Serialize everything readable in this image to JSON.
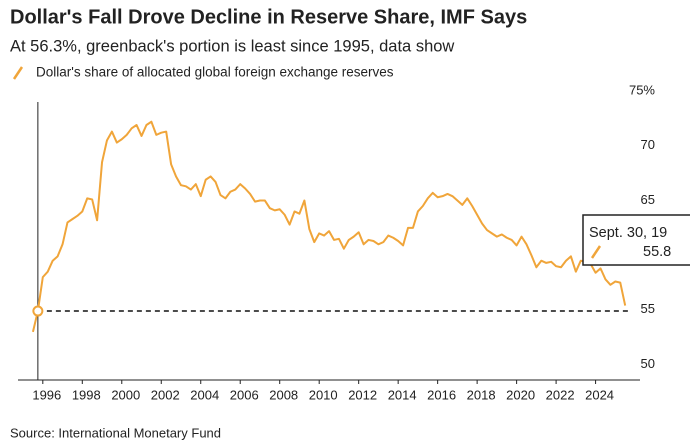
{
  "chart_data": {
    "type": "line",
    "title": "Dollar's Fall Drove Decline in Reserve Share, IMF Says",
    "subtitle": "At 56.3%, greenback's portion is least since 1995, data show",
    "source": "Source: International Monetary Fund",
    "x": [
      1995.5,
      1995.75,
      1996,
      1996.25,
      1996.5,
      1996.75,
      1997,
      1997.25,
      1997.5,
      1997.75,
      1998,
      1998.25,
      1998.5,
      1998.75,
      1999,
      1999.25,
      1999.5,
      1999.75,
      2000,
      2000.25,
      2000.5,
      2000.75,
      2001,
      2001.25,
      2001.5,
      2001.75,
      2002,
      2002.25,
      2002.5,
      2002.75,
      2003,
      2003.25,
      2003.5,
      2003.75,
      2004,
      2004.25,
      2004.5,
      2004.75,
      2005,
      2005.25,
      2005.5,
      2005.75,
      2006,
      2006.25,
      2006.5,
      2006.75,
      2007,
      2007.25,
      2007.5,
      2007.75,
      2008,
      2008.25,
      2008.5,
      2008.75,
      2009,
      2009.25,
      2009.5,
      2009.75,
      2010,
      2010.25,
      2010.5,
      2010.75,
      2011,
      2011.25,
      2011.5,
      2011.75,
      2012,
      2012.25,
      2012.5,
      2012.75,
      2013,
      2013.25,
      2013.5,
      2013.75,
      2014,
      2014.25,
      2014.5,
      2014.75,
      2015,
      2015.25,
      2015.5,
      2015.75,
      2016,
      2016.25,
      2016.5,
      2016.75,
      2017,
      2017.25,
      2017.5,
      2017.75,
      2018,
      2018.25,
      2018.5,
      2018.75,
      2019,
      2019.25,
      2019.5,
      2019.75,
      2020,
      2020.25,
      2020.5,
      2020.75,
      2021,
      2021.25,
      2021.5,
      2021.75,
      2022,
      2022.25,
      2022.5,
      2022.75,
      2023,
      2023.25,
      2023.5,
      2023.75,
      2024,
      2024.25,
      2024.5,
      2024.75,
      2025,
      2025.25,
      2025.5
    ],
    "series": [
      {
        "name": "Dollar's share of allocated global foreign exchange reserves",
        "color": "#f0a53a",
        "values": [
          53.9,
          55.8,
          58.9,
          59.4,
          60.4,
          60.8,
          61.9,
          63.9,
          64.2,
          64.5,
          64.9,
          66.1,
          66.0,
          64.1,
          69.4,
          71.4,
          72.2,
          71.2,
          71.5,
          71.9,
          72.5,
          72.8,
          71.8,
          72.8,
          73.1,
          71.9,
          72.1,
          72.2,
          69.2,
          68.1,
          67.3,
          67.2,
          66.9,
          67.4,
          66.3,
          67.8,
          68.1,
          67.6,
          66.4,
          66.1,
          66.7,
          66.9,
          67.4,
          67.0,
          66.5,
          65.8,
          65.9,
          65.9,
          65.2,
          65.0,
          65.1,
          64.6,
          63.7,
          64.9,
          64.7,
          65.9,
          63.3,
          62.1,
          62.9,
          62.7,
          63.1,
          62.3,
          62.4,
          61.5,
          62.3,
          62.6,
          63.0,
          61.9,
          62.3,
          62.2,
          61.9,
          62.1,
          62.7,
          62.5,
          62.2,
          61.8,
          63.4,
          63.4,
          64.9,
          65.4,
          66.1,
          66.6,
          66.2,
          66.3,
          66.5,
          66.3,
          65.9,
          65.5,
          66.1,
          65.4,
          64.6,
          63.8,
          63.2,
          62.9,
          62.6,
          62.8,
          62.5,
          62.3,
          61.8,
          62.6,
          61.9,
          60.9,
          59.8,
          60.4,
          60.2,
          60.3,
          59.9,
          59.8,
          60.4,
          60.8,
          59.4,
          60.4,
          60.3,
          60.1,
          59.3,
          59.7,
          58.7,
          58.2,
          58.5,
          58.4,
          56.3
        ]
      }
    ],
    "xlim": [
      1995.25,
      2026.25
    ],
    "xticks": [
      1996,
      1998,
      2000,
      2002,
      2004,
      2006,
      2008,
      2010,
      2012,
      2014,
      2016,
      2018,
      2020,
      2022,
      2024
    ],
    "ylim": [
      49.5,
      76
    ],
    "yticks": [
      50,
      55,
      60,
      65,
      70,
      {
        "value": 75,
        "label": "75%"
      }
    ],
    "tooltip": {
      "x": 1995.75,
      "value": 55.8,
      "date_label": "Sept. 30, 19",
      "value_label": "55.8"
    }
  }
}
